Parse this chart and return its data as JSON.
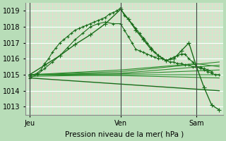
{
  "bg_color": "#b8ddb8",
  "plot_bg": "#cceacc",
  "grid_color_major": "#ffffff",
  "grid_color_minor": "#ffcccc",
  "xlabel": "Pression niveau de la mer( hPa )",
  "ylim": [
    1012.5,
    1019.5
  ],
  "yticks": [
    1013,
    1014,
    1015,
    1016,
    1017,
    1018,
    1019
  ],
  "xtick_labels": [
    "Jeu",
    "Ven",
    "Sam"
  ],
  "xtick_positions": [
    0,
    24,
    44
  ],
  "x_vlines": [
    0,
    24,
    44
  ],
  "xlim": [
    -1,
    51
  ],
  "series": [
    {
      "x": [
        0,
        2,
        3,
        4,
        5,
        6,
        7,
        8,
        9,
        10,
        11,
        12,
        13,
        14,
        15,
        16,
        17,
        18,
        19,
        20,
        21,
        22,
        23,
        24,
        25,
        26,
        27,
        28,
        29,
        30,
        31,
        32,
        33,
        34,
        35,
        36,
        37,
        38,
        39,
        40,
        41,
        42,
        43,
        44,
        45,
        46,
        47,
        48
      ],
      "y": [
        1014.9,
        1015.1,
        1015.3,
        1015.7,
        1016.0,
        1016.4,
        1016.7,
        1017.0,
        1017.2,
        1017.4,
        1017.6,
        1017.8,
        1017.9,
        1018.0,
        1018.1,
        1018.2,
        1018.3,
        1018.4,
        1018.5,
        1018.6,
        1018.8,
        1018.9,
        1019.0,
        1019.2,
        1018.7,
        1018.5,
        1018.2,
        1017.9,
        1017.6,
        1017.3,
        1017.0,
        1016.7,
        1016.4,
        1016.2,
        1016.0,
        1015.9,
        1015.8,
        1015.8,
        1015.7,
        1015.7,
        1015.6,
        1015.6,
        1015.5,
        1015.5,
        1015.4,
        1015.4,
        1015.3,
        1015.2
      ],
      "color": "#1a6b1a",
      "marker": "+",
      "lw": 0.8,
      "ms": 3,
      "zorder": 5
    },
    {
      "x": [
        0,
        2,
        4,
        6,
        8,
        10,
        12,
        14,
        16,
        18,
        20,
        22,
        24,
        25,
        26,
        27,
        28,
        29,
        30,
        31,
        32,
        33,
        34,
        35,
        36,
        37,
        38,
        39,
        40,
        41,
        42,
        43,
        44,
        45,
        46,
        47,
        48,
        49,
        50
      ],
      "y": [
        1014.8,
        1015.0,
        1015.4,
        1015.8,
        1016.2,
        1016.7,
        1017.2,
        1017.6,
        1018.0,
        1018.2,
        1018.3,
        1018.2,
        1018.2,
        1017.8,
        1017.4,
        1017.0,
        1016.6,
        1016.5,
        1016.4,
        1016.3,
        1016.2,
        1016.1,
        1016.0,
        1016.0,
        1015.9,
        1016.0,
        1016.1,
        1016.2,
        1016.3,
        1016.3,
        1016.0,
        1015.8,
        1015.5,
        1015.5,
        1015.3,
        1015.2,
        1015.1,
        1015.0,
        1015.0
      ],
      "color": "#1a6b1a",
      "marker": "+",
      "lw": 0.8,
      "ms": 3,
      "zorder": 4
    },
    {
      "x": [
        0,
        4,
        8,
        12,
        16,
        20,
        24,
        26,
        28,
        30,
        32,
        34,
        36,
        38,
        40,
        42,
        44,
        46,
        48,
        50
      ],
      "y": [
        1015.0,
        1015.6,
        1016.2,
        1016.9,
        1017.5,
        1018.2,
        1019.1,
        1018.5,
        1017.8,
        1017.2,
        1016.6,
        1016.2,
        1015.9,
        1016.0,
        1016.5,
        1017.0,
        1015.5,
        1014.2,
        1013.1,
        1012.8
      ],
      "color": "#1a6b1a",
      "marker": "+",
      "lw": 1.0,
      "ms": 4,
      "zorder": 3
    },
    {
      "x": [
        0,
        24,
        50
      ],
      "y": [
        1015.0,
        1015.1,
        1015.6
      ],
      "color": "#2d8b2d",
      "marker": null,
      "lw": 0.8,
      "ms": 0,
      "zorder": 2
    },
    {
      "x": [
        0,
        24,
        50
      ],
      "y": [
        1015.0,
        1015.05,
        1015.3
      ],
      "color": "#2d8b2d",
      "marker": null,
      "lw": 0.8,
      "ms": 0,
      "zorder": 2
    },
    {
      "x": [
        0,
        24,
        50
      ],
      "y": [
        1015.0,
        1015.2,
        1015.8
      ],
      "color": "#2d8b2d",
      "marker": null,
      "lw": 0.8,
      "ms": 0,
      "zorder": 2
    },
    {
      "x": [
        0,
        24,
        50
      ],
      "y": [
        1014.9,
        1015.0,
        1015.0
      ],
      "color": "#2d8b2d",
      "marker": null,
      "lw": 0.8,
      "ms": 0,
      "zorder": 2
    },
    {
      "x": [
        0,
        24,
        50
      ],
      "y": [
        1015.0,
        1014.95,
        1014.8
      ],
      "color": "#2d8b2d",
      "marker": null,
      "lw": 0.8,
      "ms": 0,
      "zorder": 2
    },
    {
      "x": [
        0,
        50
      ],
      "y": [
        1014.8,
        1014.0
      ],
      "color": "#1a6b1a",
      "marker": null,
      "lw": 1.0,
      "ms": 0,
      "zorder": 2
    },
    {
      "x": [
        0,
        24,
        44,
        50
      ],
      "y": [
        1015.0,
        1015.3,
        1015.7,
        1015.5
      ],
      "color": "#2d8b2d",
      "marker": null,
      "lw": 0.8,
      "ms": 0,
      "zorder": 2
    }
  ]
}
